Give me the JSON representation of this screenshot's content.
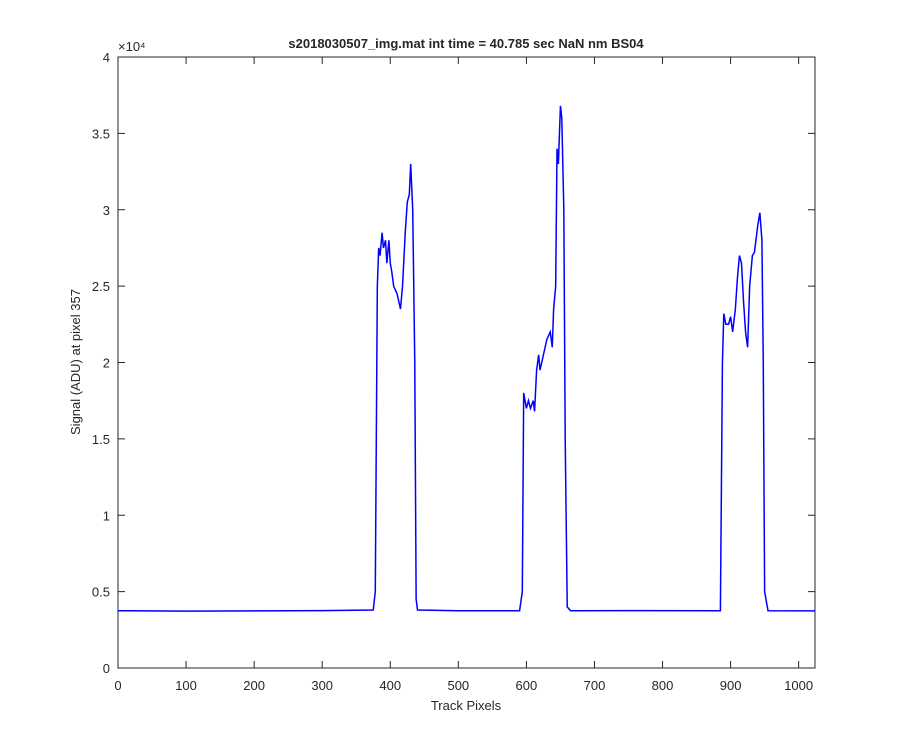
{
  "chart_data": {
    "type": "line",
    "title": "s2018030507_img.mat int time = 40.785 sec  NaN nm BS04",
    "xlabel": "Track Pixels",
    "ylabel": "Signal (ADU) at pixel 357",
    "y_exponent_label": "×10⁴",
    "xlim": [
      0,
      1024
    ],
    "xticks": [
      0,
      100,
      200,
      300,
      400,
      500,
      600,
      700,
      800,
      900,
      1000
    ],
    "ylim": [
      0,
      40000
    ],
    "yticks": [
      0,
      {
        "value": 5000,
        "label": "0.5"
      },
      {
        "value": 10000,
        "label": "1"
      },
      {
        "value": 15000,
        "label": "1.5"
      },
      {
        "value": 20000,
        "label": "2"
      },
      {
        "value": 25000,
        "label": "2.5"
      },
      {
        "value": 30000,
        "label": "3"
      },
      {
        "value": 35000,
        "label": "3.5"
      },
      {
        "value": 40000,
        "label": "4"
      }
    ],
    "grid": false,
    "series": [
      {
        "color": "#0000ff",
        "x": [
          0,
          100,
          200,
          300,
          375,
          378,
          381,
          383,
          385,
          388,
          390,
          393,
          395,
          398,
          400,
          402,
          405,
          410,
          415,
          418,
          422,
          425,
          428,
          430,
          433,
          436,
          438,
          440,
          500,
          590,
          594,
          596,
          598,
          600,
          603,
          606,
          610,
          612,
          615,
          618,
          620,
          625,
          630,
          635,
          638,
          640,
          643,
          645,
          647,
          650,
          652,
          655,
          657,
          660,
          665,
          750,
          885,
          888,
          890,
          893,
          897,
          900,
          903,
          907,
          910,
          913,
          916,
          919,
          922,
          925,
          928,
          932,
          935,
          940,
          943,
          946,
          948,
          950,
          955,
          1024
        ],
        "values": [
          3750,
          3720,
          3740,
          3760,
          3800,
          5000,
          25000,
          27500,
          27000,
          28500,
          27500,
          28000,
          26500,
          28000,
          26500,
          26000,
          25000,
          24500,
          23500,
          25000,
          28500,
          30500,
          31000,
          33000,
          30000,
          20000,
          4500,
          3800,
          3750,
          3750,
          5000,
          18000,
          17500,
          17000,
          17500,
          17000,
          17500,
          16800,
          19500,
          20500,
          19500,
          20500,
          21500,
          22000,
          21000,
          23500,
          25000,
          34000,
          33000,
          36800,
          36000,
          30000,
          15000,
          4000,
          3750,
          3760,
          3750,
          20000,
          23200,
          22500,
          22500,
          23000,
          22000,
          23500,
          25500,
          27000,
          26500,
          24000,
          22000,
          21000,
          25000,
          27000,
          27200,
          29000,
          29800,
          28000,
          20000,
          5000,
          3750,
          3740
        ]
      }
    ]
  }
}
